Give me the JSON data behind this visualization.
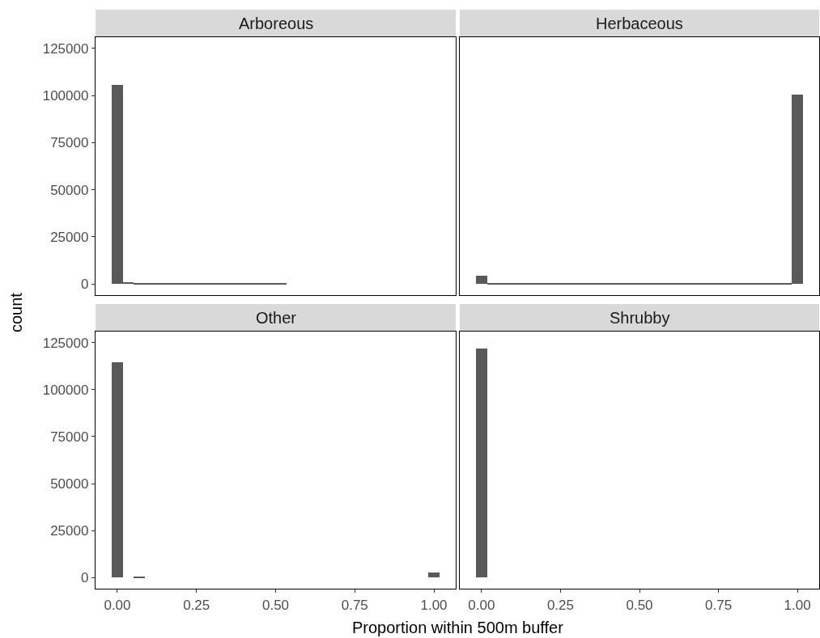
{
  "chart_data": [
    {
      "type": "histogram",
      "title": "Arboreous",
      "ylabel": "count",
      "color": "#595959",
      "tick_labels": "y",
      "bins": [
        -0.0172,
        0.0172,
        0.0517,
        0.0862,
        0.1207,
        0.1552,
        0.1897,
        0.2241,
        0.2586,
        0.2931,
        0.3276,
        0.3621,
        0.3966,
        0.431,
        0.4655,
        0.5,
        0.5345,
        0.569,
        0.6034,
        0.6379,
        0.6724,
        0.7069,
        0.7414,
        0.7759,
        0.8103,
        0.8448,
        0.8793,
        0.9138,
        0.9483,
        0.9828,
        1.0172
      ],
      "values": [
        105700,
        900,
        200,
        200,
        200,
        200,
        200,
        200,
        200,
        200,
        200,
        200,
        200,
        200,
        200,
        200,
        0,
        0,
        0,
        0,
        0,
        0,
        0,
        0,
        0,
        0,
        0,
        0,
        0,
        0
      ],
      "xlim": [
        -0.069,
        1.069
      ],
      "ylim": [
        -6000,
        131000
      ],
      "yticks": [
        0,
        25000,
        50000,
        75000,
        100000,
        125000
      ]
    },
    {
      "type": "histogram",
      "title": "Herbaceous",
      "color": "#595959",
      "tick_labels": false,
      "bins": [
        -0.0172,
        0.0172,
        0.0517,
        0.0862,
        0.1207,
        0.1552,
        0.1897,
        0.2241,
        0.2586,
        0.2931,
        0.3276,
        0.3621,
        0.3966,
        0.431,
        0.4655,
        0.5,
        0.5345,
        0.569,
        0.6034,
        0.6379,
        0.6724,
        0.7069,
        0.7414,
        0.7759,
        0.8103,
        0.8448,
        0.8793,
        0.9138,
        0.9483,
        0.9828,
        1.0172
      ],
      "values": [
        4400,
        200,
        200,
        200,
        200,
        200,
        200,
        200,
        200,
        200,
        200,
        200,
        200,
        200,
        200,
        200,
        200,
        200,
        200,
        200,
        200,
        200,
        200,
        200,
        200,
        200,
        200,
        200,
        200,
        100400
      ],
      "xlim": [
        -0.069,
        1.069
      ],
      "ylim": [
        -6000,
        131000
      ]
    },
    {
      "type": "histogram",
      "title": "Other",
      "xlabel": "Proportion within 500m buffer",
      "color": "#595959",
      "bins": [
        -0.0172,
        0.0172,
        0.0517,
        0.0862,
        0.1207,
        0.1552,
        0.1897,
        0.2241,
        0.2586,
        0.2931,
        0.3276,
        0.3621,
        0.3966,
        0.431,
        0.4655,
        0.5,
        0.5345,
        0.569,
        0.6034,
        0.6379,
        0.6724,
        0.7069,
        0.7414,
        0.7759,
        0.8103,
        0.8448,
        0.8793,
        0.9138,
        0.9483,
        0.9828,
        1.0172
      ],
      "values": [
        114800,
        0,
        400,
        0,
        0,
        0,
        0,
        0,
        0,
        0,
        0,
        0,
        0,
        0,
        0,
        0,
        0,
        0,
        0,
        0,
        0,
        0,
        0,
        0,
        0,
        0,
        0,
        0,
        0,
        2500
      ],
      "xlim": [
        -0.069,
        1.069
      ],
      "ylim": [
        -6000,
        131000
      ],
      "xticks": [
        {
          "value": 0,
          "label": "0.00"
        },
        {
          "value": 0.25,
          "label": "0.25"
        },
        {
          "value": 0.5,
          "label": "0.50"
        },
        {
          "value": 0.75,
          "label": "0.75"
        },
        {
          "value": 1,
          "label": "1.00"
        }
      ],
      "yticks": [
        0,
        25000,
        50000,
        75000,
        100000,
        125000
      ]
    },
    {
      "type": "histogram",
      "title": "Shrubby",
      "color": "#595959",
      "tick_labels": "x",
      "bins": [
        -0.0172,
        0.0172,
        0.0517,
        0.0862,
        0.1207,
        0.1552,
        0.1897,
        0.2241,
        0.2586,
        0.2931,
        0.3276,
        0.3621,
        0.3966,
        0.431,
        0.4655,
        0.5,
        0.5345,
        0.569,
        0.6034,
        0.6379,
        0.6724,
        0.7069,
        0.7414,
        0.7759,
        0.8103,
        0.8448,
        0.8793,
        0.9138,
        0.9483,
        0.9828,
        1.0172
      ],
      "values": [
        122000,
        0,
        0,
        0,
        0,
        0,
        0,
        0,
        0,
        0,
        0,
        0,
        0,
        0,
        0,
        0,
        0,
        0,
        0,
        0,
        0,
        0,
        0,
        0,
        0,
        0,
        0,
        0,
        0,
        0
      ],
      "xlim": [
        -0.069,
        1.069
      ],
      "ylim": [
        -6000,
        131000
      ],
      "xticks": [
        {
          "value": 0,
          "label": "0.00"
        },
        {
          "value": 0.25,
          "label": "0.25"
        },
        {
          "value": 0.5,
          "label": "0.50"
        },
        {
          "value": 0.75,
          "label": "0.75"
        },
        {
          "value": 1,
          "label": "1.00"
        }
      ]
    }
  ]
}
